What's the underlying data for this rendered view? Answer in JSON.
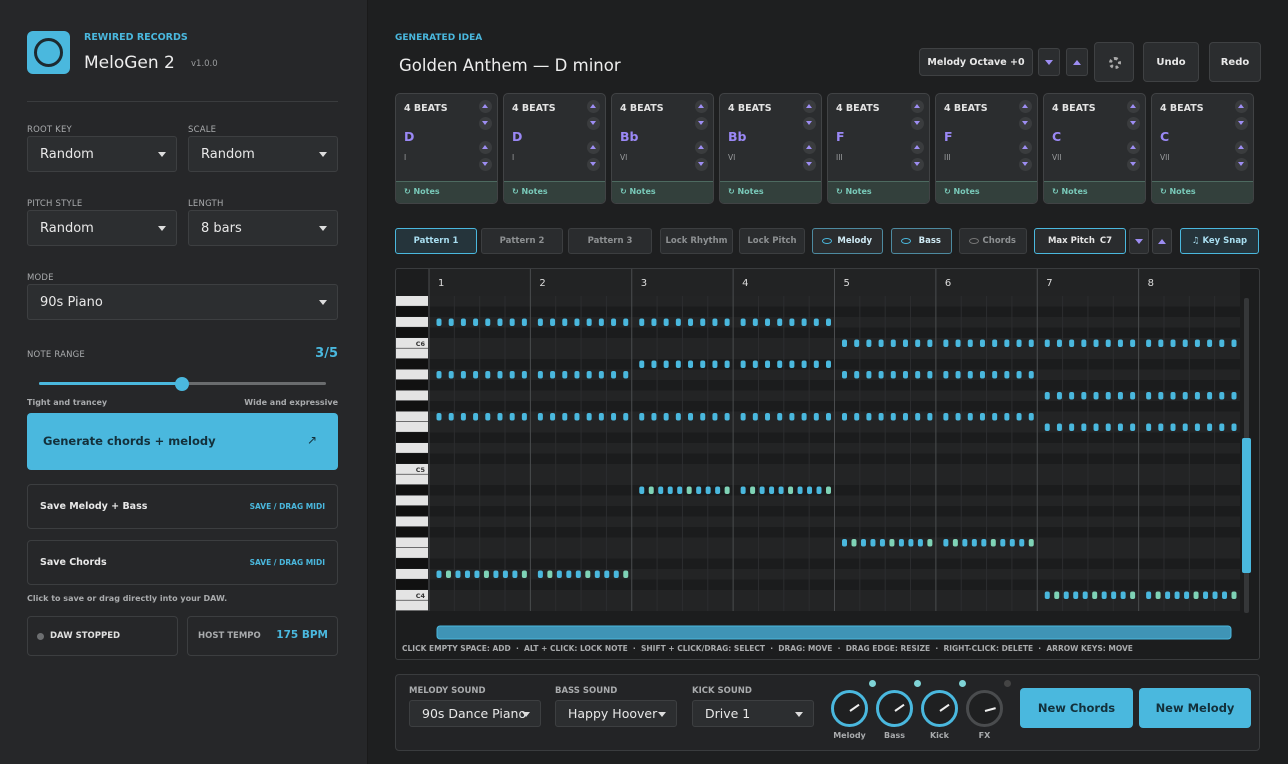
{
  "sidebar": {
    "brand": "REWIRED RECORDS",
    "app": "MeloGen 2",
    "version": "v1.0.0",
    "root_key": {
      "label": "ROOT KEY",
      "value": "Random"
    },
    "scale": {
      "label": "SCALE",
      "value": "Random"
    },
    "pitch_style": {
      "label": "PITCH STYLE",
      "value": "Random"
    },
    "length": {
      "label": "LENGTH",
      "value": "8 bars"
    },
    "mode": {
      "label": "MODE",
      "value": "90s Piano"
    },
    "note_range": {
      "label": "NOTE RANGE",
      "value": "3/5",
      "left": "Tight and trancey",
      "right": "Wide and expressive"
    },
    "generate": {
      "label": "Generate chords + melody",
      "icon": "↗"
    },
    "save_melody": {
      "label": "Save Melody + Bass",
      "action": "SAVE / DRAG MIDI"
    },
    "save_chords": {
      "label": "Save Chords",
      "action": "SAVE / DRAG MIDI"
    },
    "hint": "Click to save or drag directly into your DAW.",
    "daw": "DAW STOPPED",
    "tempo_label": "HOST TEMPO",
    "tempo": "175 BPM"
  },
  "idea": {
    "label": "GENERATED IDEA",
    "title": "Golden Anthem — D minor"
  },
  "toolbar": {
    "octave": "Melody Octave +0",
    "undo": "Undo",
    "redo": "Redo"
  },
  "chords": [
    {
      "beats": "4 BEATS",
      "name": "D",
      "numeral": "I",
      "notes": "↻ Notes"
    },
    {
      "beats": "4 BEATS",
      "name": "D",
      "numeral": "I",
      "notes": "↻ Notes"
    },
    {
      "beats": "4 BEATS",
      "name": "Bb",
      "numeral": "VI",
      "notes": "↻ Notes"
    },
    {
      "beats": "4 BEATS",
      "name": "Bb",
      "numeral": "VI",
      "notes": "↻ Notes"
    },
    {
      "beats": "4 BEATS",
      "name": "F",
      "numeral": "III",
      "notes": "↻ Notes"
    },
    {
      "beats": "4 BEATS",
      "name": "F",
      "numeral": "III",
      "notes": "↻ Notes"
    },
    {
      "beats": "4 BEATS",
      "name": "C",
      "numeral": "VII",
      "notes": "↻ Notes"
    },
    {
      "beats": "4 BEATS",
      "name": "C",
      "numeral": "VII",
      "notes": "↻ Notes"
    }
  ],
  "patterns": [
    "Pattern 1",
    "Pattern 2",
    "Pattern 3"
  ],
  "locks": [
    "Lock Rhythm",
    "Lock Pitch"
  ],
  "tracks": [
    "Melody",
    "Bass",
    "Chords"
  ],
  "max_pitch": {
    "label": "Max Pitch",
    "value": "C7"
  },
  "key_snap": "♫ Key Snap",
  "roll": {
    "bars": [
      "1",
      "2",
      "3",
      "4",
      "5",
      "6",
      "7",
      "8"
    ],
    "keys": [
      "C6",
      "C5",
      "C4"
    ],
    "hint": "CLICK EMPTY SPACE: ADD  ·  ALT + CLICK: LOCK NOTE  ·  SHIFT + CLICK/DRAG: SELECT  ·  DRAG: MOVE  ·  DRAG EDGE: RESIZE  ·  RIGHT-CLICK: DELETE  ·  ARROW KEYS: MOVE"
  },
  "sounds": {
    "melody": {
      "label": "MELODY SOUND",
      "value": "90s Dance Piano"
    },
    "bass": {
      "label": "BASS SOUND",
      "value": "Happy Hoover"
    },
    "kick": {
      "label": "KICK SOUND",
      "value": "Drive 1"
    }
  },
  "knobs": [
    "Melody",
    "Bass",
    "Kick",
    "FX"
  ],
  "actions": {
    "new_chords": "New Chords",
    "new_melody": "New Melody"
  }
}
